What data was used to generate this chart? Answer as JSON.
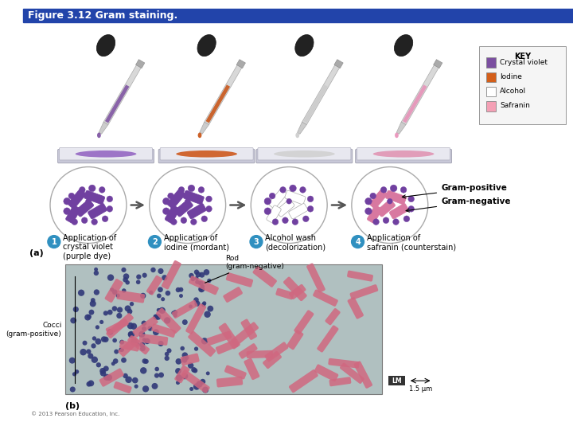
{
  "title": "Figure 3.12 Gram staining.",
  "title_fontsize": 9,
  "bg_color": "#ffffff",
  "header_color": "#2244aa",
  "key_items": [
    {
      "label": "Crystal violet",
      "color": "#7b4fa0"
    },
    {
      "label": "Iodine",
      "color": "#d45f1a"
    },
    {
      "label": "Alcohol",
      "color": "#ffffff"
    },
    {
      "label": "Safranin",
      "color": "#f4a0b5"
    }
  ],
  "steps": [
    {
      "num": "1",
      "line1": "Application of",
      "line2": "crystal violet",
      "line3": "(purple dye)"
    },
    {
      "num": "2",
      "line1": "Application of",
      "line2": "iodine (mordant)",
      "line3": ""
    },
    {
      "num": "3",
      "line1": "Alcohol wash",
      "line2": "(decolorization)",
      "line3": ""
    },
    {
      "num": "4",
      "line1": "Application of",
      "line2": "safranin (counterstain)",
      "line3": ""
    }
  ],
  "gram_positive_label": "Gram-positive",
  "gram_negative_label": "Gram-negative",
  "label_a": "(a)",
  "label_b": "(b)",
  "rod_label": "Rod\n(gram-negative)",
  "cocci_label": "Cocci\n(gram-positive)",
  "scale_label": "1.5 μm",
  "copyright": "© 2013 Pearson Education, Inc.",
  "dropper_colors": [
    "#7b4fa0",
    "#c85010",
    "#cccccc",
    "#e890b8"
  ],
  "slide_colors": [
    "#9060c0",
    "#cc5010",
    "#d0d0d0",
    "#e090b0"
  ],
  "dot_colors": [
    "#7040a0",
    "#7040a0",
    "#7040a0",
    "#7040a0"
  ],
  "rod_colors_circ": [
    "#7040a0",
    "#7040a0",
    "#dddddd",
    "#e890b8"
  ],
  "dot_colors_circ": [
    "#7040a0",
    "#7040a0",
    "#7040a0",
    "#7040a0"
  ],
  "micro_bg": "#b0c0c0",
  "micro_dot_color": "#303878",
  "micro_rod_color": "#d06880"
}
